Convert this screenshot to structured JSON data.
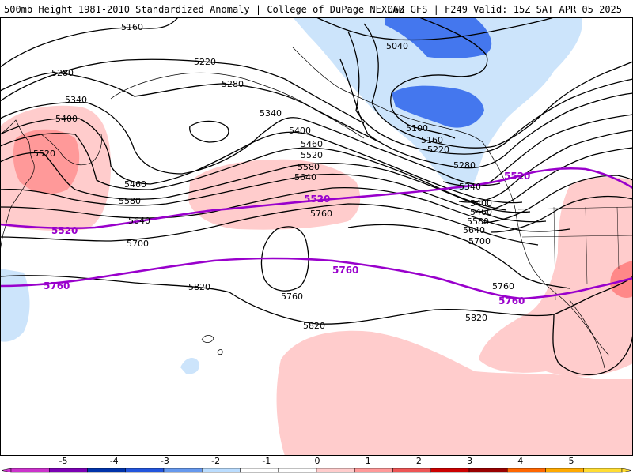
{
  "header": {
    "title_left": "500mb Height 1981-2010 Standardized Anomaly | College of DuPage NEXLAB",
    "title_right": "06Z GFS | F249 Valid: 15Z SAT APR 05 2025"
  },
  "map": {
    "contour_labels": [
      {
        "id": "c5160",
        "text": "5160"
      },
      {
        "id": "c5220a",
        "text": "5220"
      },
      {
        "id": "c5280a",
        "text": "5280"
      },
      {
        "id": "c5280b",
        "text": "5280"
      },
      {
        "id": "c5340a",
        "text": "5340"
      },
      {
        "id": "c5340b",
        "text": "5340"
      },
      {
        "id": "c5400a",
        "text": "5400"
      },
      {
        "id": "c5400b",
        "text": "5400"
      },
      {
        "id": "c5460a",
        "text": "5460"
      },
      {
        "id": "c5460b",
        "text": "5460"
      },
      {
        "id": "c5520a",
        "text": "5520"
      },
      {
        "id": "c5520b",
        "text": "5520"
      },
      {
        "id": "c5580a",
        "text": "5580"
      },
      {
        "id": "c5580b",
        "text": "5580"
      },
      {
        "id": "c5640a",
        "text": "5640"
      },
      {
        "id": "c5640b",
        "text": "5640"
      },
      {
        "id": "c5700a",
        "text": "5700"
      },
      {
        "id": "c5700b",
        "text": "5700"
      },
      {
        "id": "c5760a",
        "text": "5760"
      },
      {
        "id": "c5760b",
        "text": "5760"
      },
      {
        "id": "c5760c",
        "text": "5760"
      },
      {
        "id": "c5820a",
        "text": "5820"
      },
      {
        "id": "c5820b",
        "text": "5820"
      },
      {
        "id": "c5820c",
        "text": "5820"
      },
      {
        "id": "c5040",
        "text": "5040"
      },
      {
        "id": "c5100",
        "text": "5100"
      },
      {
        "id": "c5160b",
        "text": "5160"
      },
      {
        "id": "c5220b",
        "text": "5220"
      },
      {
        "id": "c5280c",
        "text": "5280"
      },
      {
        "id": "c5340c",
        "text": "5340"
      },
      {
        "id": "c5400c",
        "text": "5400"
      },
      {
        "id": "c5460c",
        "text": "5460"
      },
      {
        "id": "c5580c",
        "text": "5580"
      },
      {
        "id": "c5640c",
        "text": "5640"
      }
    ],
    "purple_labels": [
      {
        "id": "p5520a",
        "text": "5520"
      },
      {
        "id": "p5520b",
        "text": "5520"
      },
      {
        "id": "p5520c",
        "text": "5520"
      },
      {
        "id": "p5760a",
        "text": "5760"
      },
      {
        "id": "p5760b",
        "text": "5760"
      },
      {
        "id": "p5760c",
        "text": "5760"
      }
    ],
    "colors": {
      "purple_contour": "#9900cc",
      "land_outline": "#000000"
    }
  },
  "colorbar": {
    "ticks": [
      "-5",
      "-4",
      "-3",
      "-2",
      "-1",
      "0",
      "1",
      "2",
      "3",
      "4",
      "5"
    ],
    "colors": [
      "#cc33cc",
      "#7b00b4",
      "#0033aa",
      "#2255dd",
      "#6699ee",
      "#bbddff",
      "#ffffff",
      "#ffffff",
      "#ffcccc",
      "#ff9999",
      "#ee5555",
      "#cc0000",
      "#990000",
      "#ff6600",
      "#ffaa00",
      "#ffdd33"
    ]
  }
}
